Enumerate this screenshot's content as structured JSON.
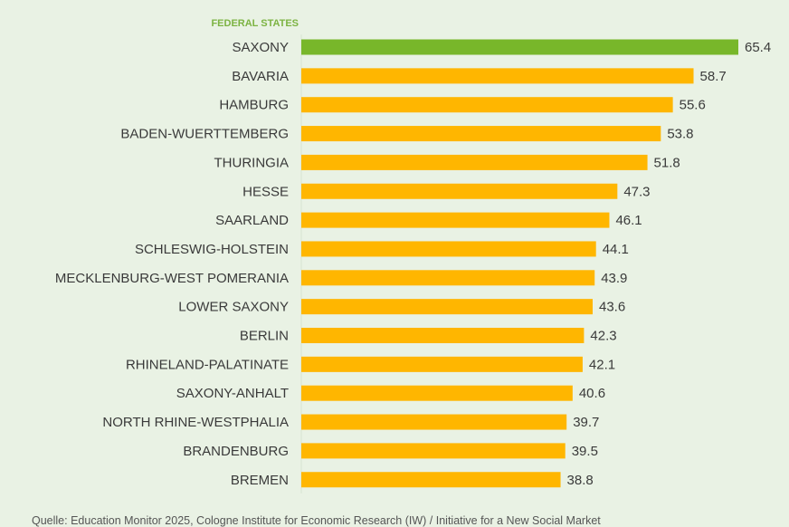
{
  "chart_data": {
    "type": "bar",
    "orientation": "horizontal",
    "category_header": "FEDERAL STATES",
    "categories": [
      "SAXONY",
      "BAVARIA",
      "HAMBURG",
      "BADEN-WUERTTEMBERG",
      "THURINGIA",
      "HESSE",
      "SAARLAND",
      "SCHLESWIG-HOLSTEIN",
      "MECKLENBURG-WEST POMERANIA",
      "LOWER SAXONY",
      "BERLIN",
      "RHINELAND-PALATINATE",
      "SAXONY-ANHALT",
      "NORTH RHINE-WESTPHALIA",
      "BRANDENBURG",
      "BREMEN"
    ],
    "values": [
      65.4,
      58.7,
      55.6,
      53.8,
      51.8,
      47.3,
      46.1,
      44.1,
      43.9,
      43.6,
      42.3,
      42.1,
      40.6,
      39.7,
      39.5,
      38.8
    ],
    "value_labels": [
      "65.4",
      "58.7",
      "55.6",
      "53.8",
      "51.8",
      "47.3",
      "46.1",
      "44.1",
      "43.9",
      "43.6",
      "42.3",
      "42.1",
      "40.6",
      "39.7",
      "39.5",
      "38.8"
    ],
    "highlight_index": 0,
    "colors": {
      "highlight": "#78b72a",
      "default": "#ffb600",
      "header": "#7cb342"
    },
    "xlim": [
      0,
      65.4
    ],
    "grid": false
  },
  "source": "Quelle: Education Monitor 2025, Cologne Institute for Economic Research (IW) / Initiative for a New Social Market"
}
